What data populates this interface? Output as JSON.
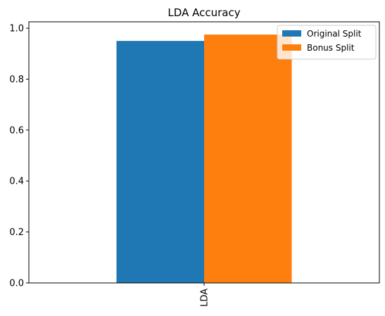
{
  "chart_data": {
    "type": "bar",
    "title": "LDA Accuracy",
    "xlabel": "",
    "ylabel": "",
    "categories": [
      "LDA"
    ],
    "series": [
      {
        "name": "Original Split",
        "values": [
          0.95
        ],
        "color": "#1f77b4"
      },
      {
        "name": "Bonus Split",
        "values": [
          0.975
        ],
        "color": "#ff7f0e"
      }
    ],
    "ylim": [
      0,
      1.025
    ],
    "yticks": [
      0.0,
      0.2,
      0.4,
      0.6,
      0.8,
      1.0
    ],
    "ytick_labels": [
      "0.0",
      "0.2",
      "0.4",
      "0.6",
      "0.8",
      "1.0"
    ],
    "xtick_rotation": "vertical",
    "grid": false,
    "legend_position": "top-right"
  }
}
